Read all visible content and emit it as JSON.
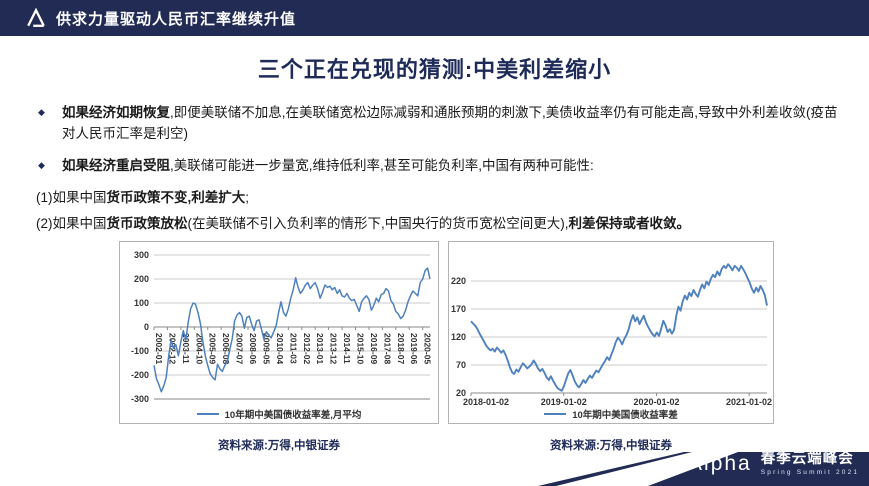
{
  "header": {
    "title": "供求力量驱动人民币汇率继续升值",
    "logo": "alpha-triangle-icon"
  },
  "slide_title": "三个正在兑现的猜测:中美利差缩小",
  "bullets": [
    {
      "marker": "◆",
      "segments": [
        {
          "b": true,
          "t": "如果经济如期恢复"
        },
        {
          "b": false,
          "t": ",即便美联储不加息,在美联储宽松边际减弱和通胀预期的刺激下,美债收益率仍有可能走高,导致中外利差收敛(疫苗对人民币汇率是利空)"
        }
      ]
    },
    {
      "marker": "◆",
      "segments": [
        {
          "b": true,
          "t": "如果经济重启受阻"
        },
        {
          "b": false,
          "t": ",美联储可能进一步量宽,维持低利率,甚至可能负利率,中国有两种可能性:"
        }
      ]
    }
  ],
  "numbered": [
    {
      "segments": [
        {
          "b": false,
          "t": "(1)如果中国"
        },
        {
          "b": true,
          "t": "货币政策不变,利差扩大"
        },
        {
          "b": false,
          "t": ";"
        }
      ]
    },
    {
      "segments": [
        {
          "b": false,
          "t": "(2)如果中国"
        },
        {
          "b": true,
          "t": "货币政策放松"
        },
        {
          "b": false,
          "t": "(在美联储不引入负利率的情形下,中国央行的货币宽松空间更大),"
        },
        {
          "b": true,
          "t": "利差保持或者收敛。"
        }
      ]
    }
  ],
  "chart_data": [
    {
      "type": "line",
      "title": "",
      "legend": [
        "10年期中美国债收益率差,月平均"
      ],
      "legend_position": "bottom",
      "grid": true,
      "line_color": "#4f81bd",
      "ylim": [
        -300,
        300
      ],
      "yticks": [
        300,
        200,
        100,
        0,
        -100,
        -200,
        -300
      ],
      "x_start": "2002-01",
      "x_step_months": 2,
      "xticklabels": [
        "2002-01",
        "2002-12",
        "2003-11",
        "2004-10",
        "2005-09",
        "2006-08",
        "2007-07",
        "2008-06",
        "2009-05",
        "2010-04",
        "2011-03",
        "2012-02",
        "2013-01",
        "2013-12",
        "2014-11",
        "2015-10",
        "2016-09",
        "2017-08",
        "2018-07",
        "2019-06",
        "2020-05"
      ],
      "values": [
        -160,
        -215,
        -240,
        -270,
        -245,
        -210,
        -120,
        -55,
        -90,
        -75,
        -120,
        -60,
        -15,
        -55,
        20,
        75,
        100,
        95,
        60,
        15,
        -60,
        -120,
        -160,
        -195,
        -210,
        -220,
        -155,
        -175,
        -185,
        -160,
        -145,
        -95,
        -50,
        25,
        50,
        60,
        45,
        -5,
        40,
        45,
        10,
        -15,
        25,
        30,
        -10,
        -50,
        -20,
        -35,
        -45,
        -20,
        5,
        60,
        105,
        60,
        45,
        75,
        120,
        155,
        205,
        165,
        140,
        155,
        175,
        185,
        160,
        175,
        185,
        160,
        120,
        145,
        175,
        165,
        170,
        155,
        165,
        140,
        155,
        130,
        125,
        140,
        120,
        110,
        115,
        90,
        65,
        105,
        120,
        130,
        115,
        70,
        90,
        120,
        105,
        135,
        140,
        160,
        150,
        110,
        95,
        65,
        55,
        35,
        45,
        70,
        105,
        130,
        150,
        140,
        130,
        185,
        200,
        235,
        245,
        200
      ],
      "source": "资料来源:万得,中银证券"
    },
    {
      "type": "line",
      "title": "",
      "legend": [
        "10年期中美国债收益率差"
      ],
      "legend_position": "bottom",
      "grid": true,
      "line_color": "#4f81bd",
      "ylim": [
        20,
        270
      ],
      "yticks": [
        220,
        170,
        120,
        70,
        20
      ],
      "x_start": "2018-01-02",
      "xticklabels": [
        "2018-01-02",
        "2019-01-02",
        "2020-01-02",
        "2021-01-02"
      ],
      "values": [
        148,
        144,
        140,
        134,
        126,
        119,
        112,
        105,
        100,
        96,
        99,
        94,
        101,
        97,
        92,
        96,
        88,
        78,
        66,
        57,
        54,
        62,
        58,
        66,
        73,
        69,
        64,
        67,
        71,
        78,
        72,
        64,
        59,
        63,
        56,
        48,
        43,
        50,
        42,
        35,
        29,
        26,
        24,
        32,
        44,
        55,
        61,
        52,
        41,
        34,
        30,
        36,
        43,
        38,
        45,
        51,
        47,
        54,
        60,
        57,
        64,
        71,
        77,
        84,
        79,
        89,
        99,
        111,
        119,
        114,
        107,
        117,
        124,
        134,
        149,
        159,
        148,
        155,
        143,
        151,
        158,
        146,
        138,
        131,
        125,
        121,
        128,
        122,
        134,
        149,
        141,
        129,
        134,
        126,
        133,
        158,
        174,
        167,
        184,
        194,
        187,
        199,
        193,
        204,
        197,
        192,
        204,
        214,
        207,
        219,
        213,
        224,
        231,
        227,
        237,
        230,
        241,
        247,
        243,
        250,
        245,
        239,
        247,
        244,
        238,
        247,
        241,
        234,
        225,
        217,
        206,
        199,
        208,
        201,
        211,
        204,
        195,
        176
      ],
      "source": "资料来源:万得,中银证券"
    }
  ],
  "footer": {
    "brand": "Λlpha",
    "event": "春季云端峰会",
    "subtitle": "Spring Summit 2021"
  },
  "colors": {
    "navy": "#212b54",
    "title_navy": "#1e2a57",
    "chart_line_blue": "#4f81bd",
    "gridline_gray": "#cbcbcb"
  }
}
